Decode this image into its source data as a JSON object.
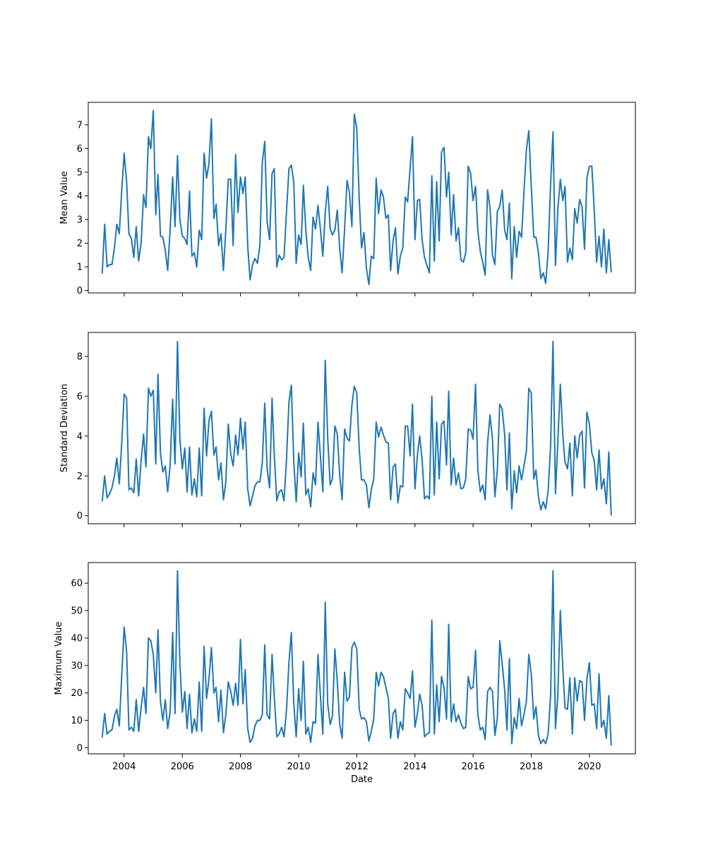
{
  "colors": {
    "line": "#1f77b4",
    "frame": "#000000",
    "background": "#ffffff"
  },
  "chart_data": [
    {
      "type": "line",
      "xlabel": "",
      "ylabel": "Mean Value",
      "xlim": [
        "2002-10-07",
        "2021-08-01"
      ],
      "ylim": [
        -0.1,
        7.95
      ],
      "x_ticks": [
        "2004-01-01",
        "2006-01-01",
        "2008-01-01",
        "2010-01-01",
        "2012-01-01",
        "2014-01-01",
        "2016-01-01",
        "2018-01-01",
        "2020-01-01"
      ],
      "x_tick_labels": [],
      "y_ticks": [
        0,
        1,
        2,
        3,
        4,
        5,
        6,
        7
      ],
      "y_tick_labels": [
        "0",
        "1",
        "2",
        "3",
        "4",
        "5",
        "6",
        "7"
      ],
      "grid": false,
      "series": [
        {
          "x_start": "2003-04",
          "x_step": "1 month",
          "values": [
            0.75,
            2.8,
            1.0,
            1.1,
            1.1,
            1.8,
            2.8,
            2.4,
            4.2,
            5.8,
            4.6,
            2.4,
            2.2,
            1.4,
            2.7,
            1.25,
            2.0,
            4.05,
            3.5,
            6.5,
            6.0,
            7.6,
            3.2,
            4.9,
            2.3,
            2.25,
            1.7,
            0.85,
            2.6,
            4.8,
            2.7,
            5.7,
            3.0,
            2.3,
            2.2,
            1.95,
            4.2,
            1.45,
            1.6,
            1.0,
            2.55,
            2.15,
            5.8,
            4.75,
            5.35,
            7.25,
            3.05,
            3.65,
            1.9,
            2.4,
            0.85,
            2.55,
            4.7,
            4.7,
            1.9,
            5.75,
            3.3,
            4.8,
            4.1,
            4.8,
            1.9,
            0.45,
            1.1,
            1.35,
            1.15,
            1.9,
            5.4,
            6.3,
            2.9,
            2.15,
            4.95,
            5.15,
            1.0,
            1.5,
            1.3,
            1.4,
            3.3,
            5.15,
            5.3,
            4.55,
            1.15,
            2.35,
            1.95,
            4.45,
            2.55,
            1.4,
            0.85,
            3.1,
            2.6,
            3.6,
            2.6,
            1.45,
            3.3,
            4.4,
            2.6,
            2.35,
            2.55,
            3.4,
            1.75,
            0.75,
            2.6,
            4.65,
            4.15,
            2.7,
            7.45,
            6.85,
            3.85,
            1.8,
            2.45,
            0.95,
            0.25,
            1.45,
            1.35,
            4.75,
            3.25,
            4.25,
            3.95,
            3.05,
            3.2,
            0.85,
            2.1,
            2.65,
            0.7,
            1.45,
            1.8,
            3.95,
            3.75,
            5.15,
            6.5,
            2.15,
            3.8,
            3.85,
            2.15,
            1.4,
            1.05,
            0.75,
            4.85,
            1.25,
            4.6,
            2.1,
            5.85,
            6.05,
            3.95,
            5.0,
            2.35,
            4.05,
            2.1,
            2.65,
            1.3,
            1.2,
            1.6,
            5.25,
            4.95,
            3.8,
            4.4,
            2.5,
            1.65,
            1.2,
            0.65,
            4.25,
            3.5,
            1.5,
            1.1,
            3.35,
            3.55,
            4.25,
            2.55,
            2.15,
            3.7,
            0.5,
            2.7,
            1.4,
            2.5,
            2.25,
            4.15,
            5.95,
            6.75,
            4.4,
            2.25,
            2.25,
            1.6,
            0.5,
            0.75,
            0.3,
            1.65,
            4.5,
            6.7,
            1.05,
            3.45,
            4.7,
            3.8,
            4.4,
            1.2,
            1.8,
            1.3,
            3.45,
            2.85,
            3.85,
            3.55,
            1.75,
            4.75,
            5.25,
            5.25,
            3.45,
            1.2,
            2.3,
            1.0,
            2.6,
            0.75,
            2.15,
            0.8
          ]
        }
      ]
    },
    {
      "type": "line",
      "xlabel": "",
      "ylabel": "Standard Deviation",
      "xlim": [
        "2002-10-07",
        "2021-08-01"
      ],
      "ylim": [
        -0.4,
        9.2
      ],
      "x_ticks": [
        "2004-01-01",
        "2006-01-01",
        "2008-01-01",
        "2010-01-01",
        "2012-01-01",
        "2014-01-01",
        "2016-01-01",
        "2018-01-01",
        "2020-01-01"
      ],
      "x_tick_labels": [],
      "y_ticks": [
        0,
        2,
        4,
        6,
        8
      ],
      "y_tick_labels": [
        "0",
        "2",
        "4",
        "6",
        "8"
      ],
      "grid": false,
      "series": [
        {
          "x_start": "2003-04",
          "x_step": "1 month",
          "values": [
            0.75,
            2.0,
            0.9,
            1.1,
            1.4,
            2.0,
            2.9,
            1.6,
            3.6,
            6.1,
            5.9,
            1.3,
            1.4,
            1.15,
            2.85,
            1.0,
            2.75,
            4.1,
            2.45,
            6.4,
            6.0,
            6.3,
            2.6,
            7.1,
            3.15,
            2.2,
            2.5,
            1.2,
            2.55,
            5.85,
            2.6,
            8.75,
            3.85,
            2.35,
            3.4,
            1.2,
            3.45,
            1.05,
            1.85,
            0.95,
            3.4,
            1.0,
            5.4,
            3.0,
            4.75,
            5.25,
            3.05,
            3.45,
            1.8,
            2.65,
            0.8,
            1.7,
            4.6,
            3.1,
            2.5,
            4.05,
            3.05,
            4.9,
            3.35,
            4.7,
            1.35,
            0.5,
            1.0,
            1.5,
            1.7,
            1.7,
            2.65,
            5.65,
            2.35,
            1.4,
            5.9,
            3.05,
            0.75,
            1.2,
            1.3,
            0.75,
            2.8,
            5.7,
            6.55,
            2.7,
            0.7,
            3.15,
            1.95,
            4.65,
            1.05,
            1.35,
            0.45,
            2.15,
            1.55,
            4.7,
            3.0,
            1.2,
            7.8,
            3.9,
            1.55,
            1.85,
            4.5,
            4.1,
            2.0,
            0.8,
            4.35,
            3.9,
            3.75,
            5.55,
            6.5,
            6.15,
            3.35,
            1.8,
            1.8,
            1.55,
            0.4,
            1.3,
            1.85,
            4.7,
            3.95,
            4.45,
            4.05,
            3.7,
            3.65,
            0.8,
            2.45,
            2.6,
            0.65,
            1.5,
            1.45,
            4.5,
            4.5,
            3.0,
            5.6,
            1.35,
            3.05,
            4.0,
            2.8,
            0.85,
            1.0,
            0.85,
            6.0,
            1.05,
            4.7,
            1.85,
            4.6,
            4.75,
            2.55,
            6.25,
            1.55,
            2.9,
            1.55,
            2.15,
            1.35,
            1.4,
            1.85,
            4.35,
            4.3,
            3.85,
            6.6,
            2.3,
            1.2,
            1.55,
            0.8,
            3.65,
            5.05,
            3.85,
            0.95,
            2.3,
            5.6,
            5.35,
            4.05,
            1.3,
            4.15,
            0.35,
            2.25,
            1.15,
            2.5,
            1.8,
            2.5,
            3.25,
            6.4,
            6.15,
            1.85,
            2.3,
            0.95,
            0.3,
            0.7,
            0.35,
            1.25,
            3.5,
            8.75,
            1.1,
            3.75,
            6.6,
            4.05,
            2.7,
            2.35,
            3.65,
            1.0,
            4.0,
            2.9,
            4.05,
            4.25,
            1.4,
            5.2,
            4.6,
            3.15,
            2.8,
            1.3,
            3.3,
            1.35,
            1.85,
            0.6,
            3.2,
            0.05
          ]
        }
      ]
    },
    {
      "type": "line",
      "xlabel": "Date",
      "ylabel": "Maximum Value",
      "xlim": [
        "2002-10-07",
        "2021-08-01"
      ],
      "ylim": [
        -2.2,
        67.5
      ],
      "x_ticks": [
        "2004-01-01",
        "2006-01-01",
        "2008-01-01",
        "2010-01-01",
        "2012-01-01",
        "2014-01-01",
        "2016-01-01",
        "2018-01-01",
        "2020-01-01"
      ],
      "x_tick_labels": [
        "2004",
        "2006",
        "2008",
        "2010",
        "2012",
        "2014",
        "2016",
        "2018",
        "2020"
      ],
      "y_ticks": [
        0,
        10,
        20,
        30,
        40,
        50,
        60
      ],
      "y_tick_labels": [
        "0",
        "10",
        "20",
        "30",
        "40",
        "50",
        "60"
      ],
      "grid": false,
      "series": [
        {
          "x_start": "2003-04",
          "x_step": "1 month",
          "values": [
            4.0,
            12.5,
            5.0,
            6.0,
            6.5,
            11.5,
            14.0,
            8.0,
            26.0,
            44.0,
            35.0,
            6.5,
            7.5,
            6.0,
            17.5,
            6.0,
            14.5,
            22.0,
            12.5,
            40.0,
            39.0,
            34.0,
            20.0,
            43.0,
            17.0,
            10.0,
            17.5,
            7.0,
            13.0,
            42.0,
            12.5,
            64.5,
            31.0,
            13.0,
            20.5,
            7.0,
            19.5,
            5.5,
            10.5,
            6.0,
            24.0,
            6.0,
            37.0,
            18.0,
            25.0,
            36.5,
            20.0,
            22.0,
            9.5,
            21.0,
            5.5,
            12.0,
            24.0,
            20.5,
            15.5,
            23.5,
            15.5,
            39.5,
            16.0,
            28.5,
            7.0,
            2.0,
            3.5,
            8.0,
            10.0,
            10.0,
            12.0,
            37.5,
            12.0,
            10.5,
            34.0,
            18.5,
            4.0,
            5.0,
            7.5,
            4.0,
            13.5,
            31.0,
            42.0,
            16.0,
            4.0,
            21.5,
            10.0,
            31.5,
            5.0,
            7.5,
            2.0,
            9.5,
            9.0,
            34.0,
            19.0,
            5.0,
            53.0,
            16.0,
            8.5,
            11.5,
            36.0,
            24.5,
            8.5,
            3.5,
            27.5,
            17.0,
            18.5,
            36.5,
            38.5,
            36.0,
            14.0,
            10.5,
            11.0,
            9.5,
            2.5,
            6.0,
            10.5,
            27.5,
            22.5,
            27.5,
            26.0,
            22.0,
            18.0,
            3.5,
            12.5,
            14.0,
            3.5,
            9.5,
            6.5,
            21.5,
            20.0,
            18.0,
            28.0,
            7.5,
            12.5,
            19.5,
            15.5,
            4.0,
            5.0,
            5.5,
            46.5,
            5.0,
            23.0,
            9.5,
            26.0,
            22.0,
            10.5,
            45.0,
            9.5,
            16.0,
            9.5,
            12.0,
            9.0,
            7.0,
            7.5,
            26.0,
            21.5,
            22.0,
            35.5,
            12.0,
            6.5,
            7.5,
            3.0,
            20.5,
            22.0,
            20.5,
            4.5,
            11.0,
            39.0,
            30.5,
            21.0,
            6.5,
            32.5,
            1.5,
            11.0,
            7.0,
            18.0,
            8.0,
            12.0,
            17.0,
            34.0,
            27.0,
            10.5,
            15.0,
            4.5,
            1.5,
            3.0,
            1.5,
            5.0,
            19.0,
            64.5,
            7.0,
            19.5,
            50.0,
            29.0,
            14.5,
            14.0,
            25.5,
            5.0,
            25.5,
            17.0,
            24.5,
            24.0,
            10.0,
            25.0,
            31.0,
            15.5,
            16.0,
            7.0,
            27.0,
            7.5,
            10.0,
            3.5,
            19.0,
            1.0
          ]
        }
      ]
    }
  ]
}
